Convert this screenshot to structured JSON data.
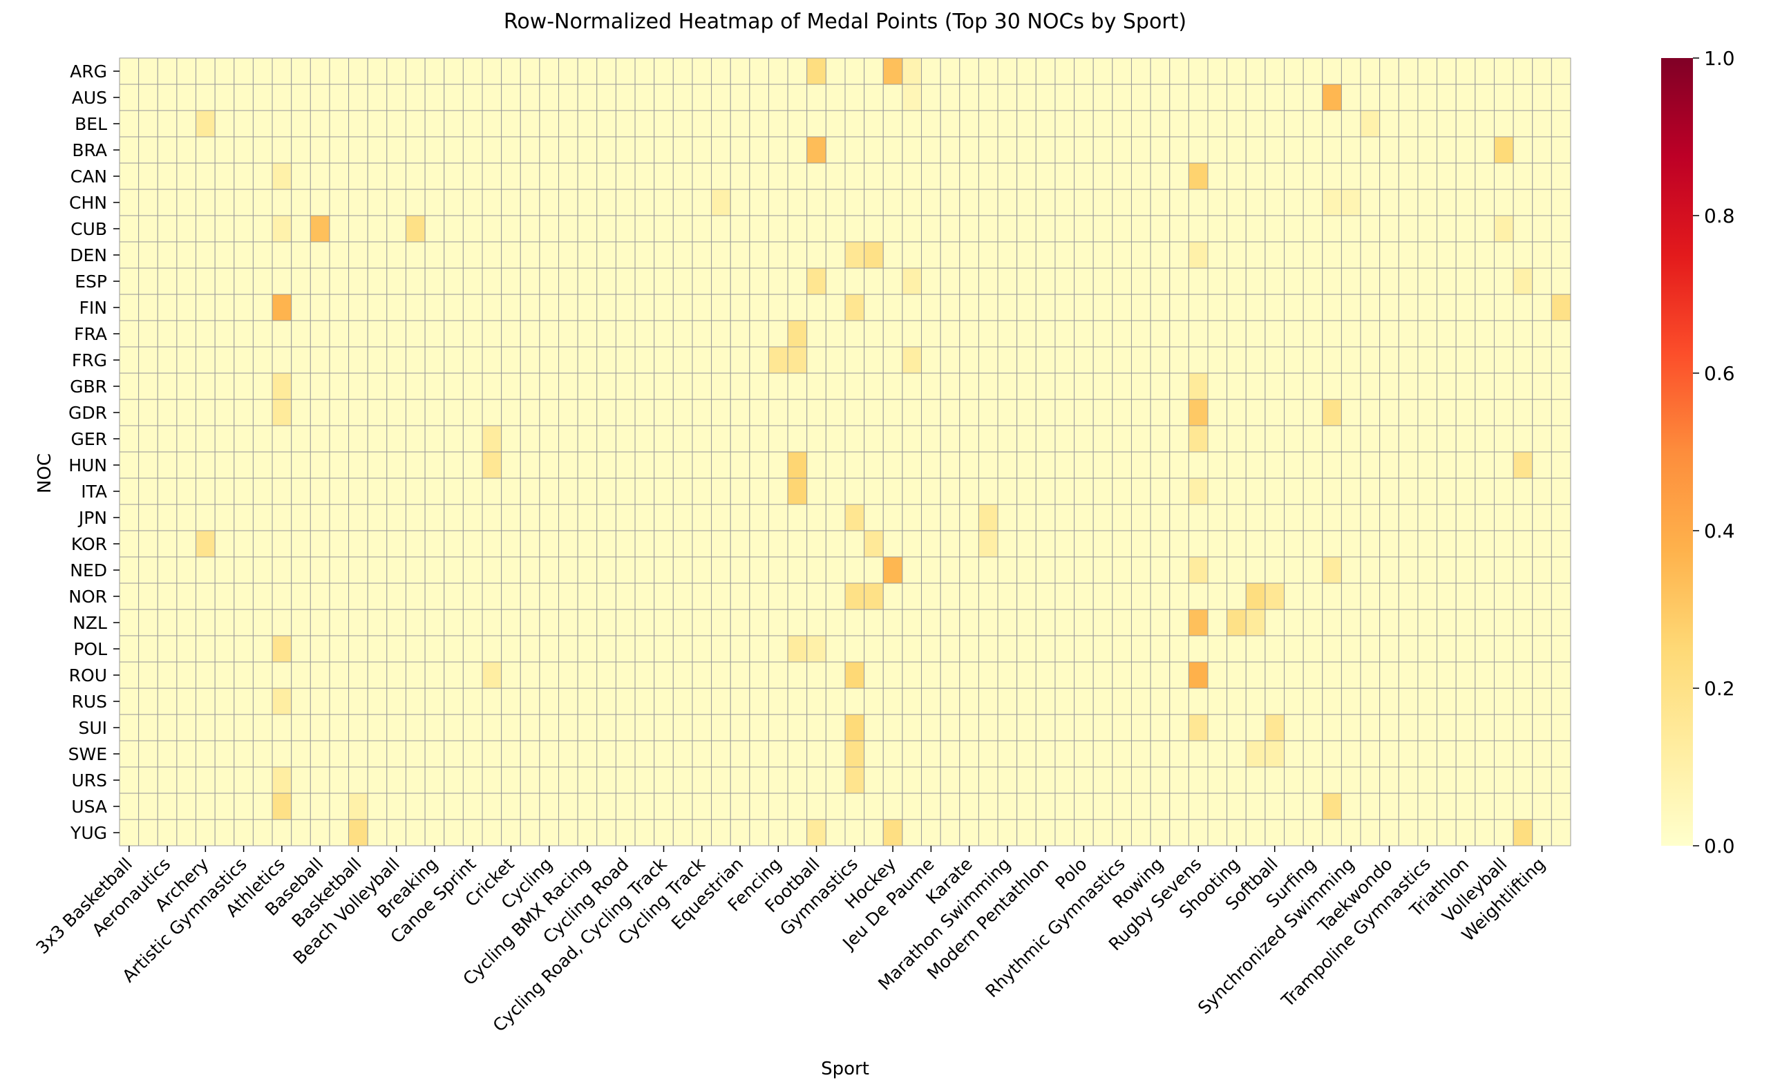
{
  "chart_data": {
    "type": "heatmap",
    "title": "Row-Normalized Heatmap of Medal Points (Top 30 NOCs by Sport)",
    "xlabel": "Sport",
    "ylabel": "NOC",
    "rows": [
      "ARG",
      "AUS",
      "BEL",
      "BRA",
      "CAN",
      "CHN",
      "CUB",
      "DEN",
      "ESP",
      "FIN",
      "FRA",
      "FRG",
      "GBR",
      "GDR",
      "GER",
      "HUN",
      "ITA",
      "JPN",
      "KOR",
      "NED",
      "NOR",
      "NZL",
      "POL",
      "ROU",
      "RUS",
      "SUI",
      "SWE",
      "URS",
      "USA",
      "YUG"
    ],
    "columns": [
      "3x3 Basketball",
      "",
      "Aeronautics",
      "",
      "Archery",
      "",
      "Artistic Gymnastics",
      "",
      "Athletics",
      "",
      "Baseball",
      "",
      "Basketball",
      "",
      "Beach Volleyball",
      "",
      "Breaking",
      "",
      "Canoe Sprint",
      "",
      "Cricket",
      "",
      "Cycling",
      "",
      "Cycling BMX Racing",
      "",
      "Cycling Road",
      "",
      "Cycling Road, Cycling Track",
      "",
      "Cycling Track",
      "",
      "Equestrian",
      "",
      "Fencing",
      "",
      "Football",
      "",
      "Gymnastics",
      "",
      "Hockey",
      "",
      "Jeu De Paume",
      "",
      "Karate",
      "",
      "Marathon Swimming",
      "",
      "Modern Pentathlon",
      "",
      "Polo",
      "",
      "Rhythmic Gymnastics",
      "",
      "Rowing",
      "",
      "Rugby Sevens",
      "",
      "Shooting",
      "",
      "Softball",
      "",
      "Surfing",
      "",
      "Synchronized Swimming",
      "",
      "Taekwondo",
      "",
      "Trampoline Gymnastics",
      "",
      "Triathlon",
      "",
      "Volleyball",
      "",
      "Weightlifting",
      ""
    ],
    "highlights": [
      {
        "row": "ARG",
        "col": 36,
        "value": 0.22
      },
      {
        "row": "ARG",
        "col": 40,
        "value": 0.33
      },
      {
        "row": "ARG",
        "col": 41,
        "value": 0.08
      },
      {
        "row": "AUS",
        "col": 63,
        "value": 0.36
      },
      {
        "row": "AUS",
        "col": 41,
        "value": 0.06
      },
      {
        "row": "BEL",
        "col": 4,
        "value": 0.14
      },
      {
        "row": "BEL",
        "col": 65,
        "value": 0.09
      },
      {
        "row": "BRA",
        "col": 36,
        "value": 0.34
      },
      {
        "row": "BRA",
        "col": 72,
        "value": 0.24
      },
      {
        "row": "CAN",
        "col": 56,
        "value": 0.27
      },
      {
        "row": "CAN",
        "col": 8,
        "value": 0.1
      },
      {
        "row": "CHN",
        "col": 31,
        "value": 0.1
      },
      {
        "row": "CHN",
        "col": 63,
        "value": 0.07
      },
      {
        "row": "CHN",
        "col": 64,
        "value": 0.07
      },
      {
        "row": "CUB",
        "col": 10,
        "value": 0.33
      },
      {
        "row": "CUB",
        "col": 15,
        "value": 0.2
      },
      {
        "row": "CUB",
        "col": 8,
        "value": 0.09
      },
      {
        "row": "CUB",
        "col": 72,
        "value": 0.1
      },
      {
        "row": "DEN",
        "col": 38,
        "value": 0.16
      },
      {
        "row": "DEN",
        "col": 39,
        "value": 0.2
      },
      {
        "row": "DEN",
        "col": 56,
        "value": 0.1
      },
      {
        "row": "ESP",
        "col": 36,
        "value": 0.17
      },
      {
        "row": "ESP",
        "col": 41,
        "value": 0.1
      },
      {
        "row": "ESP",
        "col": 73,
        "value": 0.1
      },
      {
        "row": "FIN",
        "col": 8,
        "value": 0.37
      },
      {
        "row": "FIN",
        "col": 38,
        "value": 0.17
      },
      {
        "row": "FIN",
        "col": 75,
        "value": 0.2
      },
      {
        "row": "FRA",
        "col": 35,
        "value": 0.19
      },
      {
        "row": "FRG",
        "col": 34,
        "value": 0.16
      },
      {
        "row": "FRG",
        "col": 35,
        "value": 0.16
      },
      {
        "row": "FRG",
        "col": 41,
        "value": 0.12
      },
      {
        "row": "GBR",
        "col": 8,
        "value": 0.14
      },
      {
        "row": "GBR",
        "col": 56,
        "value": 0.14
      },
      {
        "row": "GDR",
        "col": 56,
        "value": 0.3
      },
      {
        "row": "GDR",
        "col": 63,
        "value": 0.19
      },
      {
        "row": "GDR",
        "col": 8,
        "value": 0.14
      },
      {
        "row": "GER",
        "col": 19,
        "value": 0.13
      },
      {
        "row": "GER",
        "col": 56,
        "value": 0.16
      },
      {
        "row": "HUN",
        "col": 35,
        "value": 0.26
      },
      {
        "row": "HUN",
        "col": 19,
        "value": 0.16
      },
      {
        "row": "HUN",
        "col": 73,
        "value": 0.18
      },
      {
        "row": "ITA",
        "col": 35,
        "value": 0.26
      },
      {
        "row": "ITA",
        "col": 56,
        "value": 0.1
      },
      {
        "row": "JPN",
        "col": 38,
        "value": 0.17
      },
      {
        "row": "JPN",
        "col": 45,
        "value": 0.14
      },
      {
        "row": "KOR",
        "col": 4,
        "value": 0.18
      },
      {
        "row": "KOR",
        "col": 39,
        "value": 0.15
      },
      {
        "row": "KOR",
        "col": 45,
        "value": 0.11
      },
      {
        "row": "NED",
        "col": 40,
        "value": 0.36
      },
      {
        "row": "NED",
        "col": 56,
        "value": 0.13
      },
      {
        "row": "NED",
        "col": 63,
        "value": 0.13
      },
      {
        "row": "NOR",
        "col": 38,
        "value": 0.2
      },
      {
        "row": "NOR",
        "col": 39,
        "value": 0.2
      },
      {
        "row": "NOR",
        "col": 59,
        "value": 0.22
      },
      {
        "row": "NOR",
        "col": 60,
        "value": 0.16
      },
      {
        "row": "NZL",
        "col": 56,
        "value": 0.33
      },
      {
        "row": "NZL",
        "col": 58,
        "value": 0.2
      },
      {
        "row": "NZL",
        "col": 59,
        "value": 0.14
      },
      {
        "row": "POL",
        "col": 8,
        "value": 0.18
      },
      {
        "row": "POL",
        "col": 35,
        "value": 0.13
      },
      {
        "row": "POL",
        "col": 36,
        "value": 0.1
      },
      {
        "row": "ROU",
        "col": 56,
        "value": 0.38
      },
      {
        "row": "ROU",
        "col": 38,
        "value": 0.25
      },
      {
        "row": "ROU",
        "col": 19,
        "value": 0.12
      },
      {
        "row": "RUS",
        "col": 8,
        "value": 0.12
      },
      {
        "row": "SUI",
        "col": 38,
        "value": 0.24
      },
      {
        "row": "SUI",
        "col": 56,
        "value": 0.16
      },
      {
        "row": "SUI",
        "col": 60,
        "value": 0.16
      },
      {
        "row": "SWE",
        "col": 38,
        "value": 0.2
      },
      {
        "row": "SWE",
        "col": 59,
        "value": 0.1
      },
      {
        "row": "SWE",
        "col": 60,
        "value": 0.1
      },
      {
        "row": "URS",
        "col": 38,
        "value": 0.18
      },
      {
        "row": "URS",
        "col": 8,
        "value": 0.12
      },
      {
        "row": "USA",
        "col": 8,
        "value": 0.2
      },
      {
        "row": "USA",
        "col": 63,
        "value": 0.2
      },
      {
        "row": "USA",
        "col": 12,
        "value": 0.1
      },
      {
        "row": "YUG",
        "col": 12,
        "value": 0.21
      },
      {
        "row": "YUG",
        "col": 40,
        "value": 0.21
      },
      {
        "row": "YUG",
        "col": 73,
        "value": 0.22
      },
      {
        "row": "YUG",
        "col": 36,
        "value": 0.14
      }
    ],
    "colorbar": {
      "min": 0.0,
      "max": 1.0,
      "ticks": [
        "0.0",
        "0.2",
        "0.4",
        "0.6",
        "0.8",
        "1.0"
      ],
      "colormap": "YlOrRd"
    }
  }
}
